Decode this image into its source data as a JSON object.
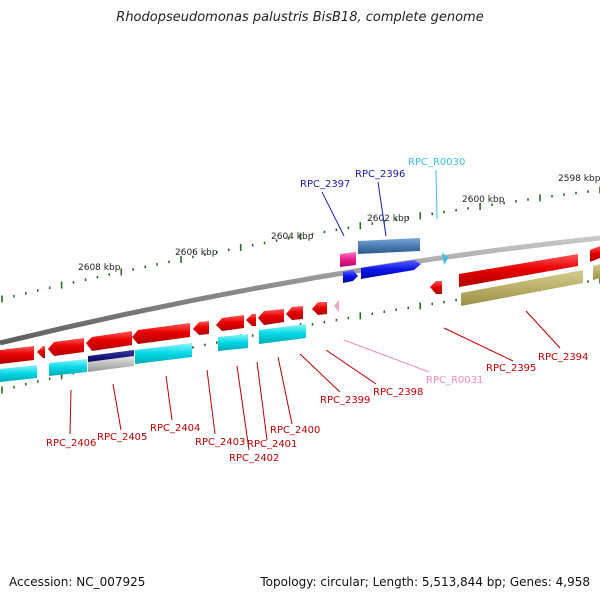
{
  "title": "Rhodopseudomonas palustris BisB18, complete genome",
  "footer": {
    "accession": "Accession: NC_007925",
    "summary": "Topology: circular; Length: 5,513,844 bp; Genes: 4,958"
  },
  "colors": {
    "gene_red": "#e80000",
    "cds_cyan": "#00d8e6",
    "feature_olive": "#b8ae66",
    "feature_steel": "#4a7eb4",
    "feature_blue": "#0a14e8",
    "feature_navy": "#101070",
    "feature_pink": "#e81e8c",
    "rna_light_pink": "#f2a4c8",
    "rna_cyan": "#3cc0e6",
    "backbone": "#888888",
    "tick_green": "#207020"
  },
  "ruler_labels": [
    "2608 kbp",
    "2606 kbp",
    "2604 kbp",
    "2602 kbp",
    "2600 kbp",
    "2598 kbp"
  ],
  "gene_labels": {
    "upper": [
      {
        "text": "RPC_2397",
        "color": "#1a1ab0"
      },
      {
        "text": "RPC_2396",
        "color": "#1a1ab0"
      },
      {
        "text": "RPC_R0030",
        "color": "#3cc0e6"
      }
    ],
    "lower": [
      {
        "text": "RPC_2406",
        "color": "#c00000"
      },
      {
        "text": "RPC_2405",
        "color": "#c00000"
      },
      {
        "text": "RPC_2404",
        "color": "#c00000"
      },
      {
        "text": "RPC_2403",
        "color": "#c00000"
      },
      {
        "text": "RPC_2402",
        "color": "#c00000"
      },
      {
        "text": "RPC_2401",
        "color": "#c00000"
      },
      {
        "text": "RPC_2400",
        "color": "#c00000"
      },
      {
        "text": "RPC_2399",
        "color": "#c00000"
      },
      {
        "text": "RPC_2398",
        "color": "#c00000"
      },
      {
        "text": "RPC_R0031",
        "color": "#f08cc0"
      },
      {
        "text": "RPC_2395",
        "color": "#c00000"
      },
      {
        "text": "RPC_2394",
        "color": "#c00000"
      }
    ]
  }
}
